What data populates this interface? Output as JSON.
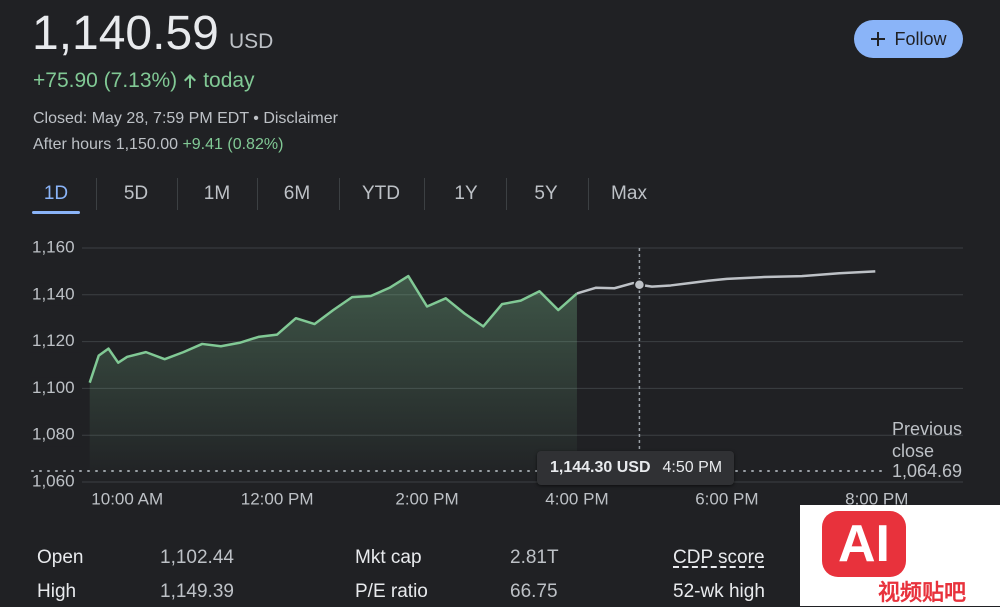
{
  "quote": {
    "price": "1,140.59",
    "currency": "USD",
    "change": "+75.90 (7.13%)",
    "change_suffix": "today",
    "closed": "Closed: May 28, 7:59 PM EDT",
    "separator": "•",
    "disclaimer": "Disclaimer",
    "after_hours": "After hours 1,150.00",
    "after_hours_change": "+9.41 (0.82%)"
  },
  "follow": "Follow",
  "ranges": [
    "1D",
    "5D",
    "1M",
    "6M",
    "YTD",
    "1Y",
    "5Y",
    "Max"
  ],
  "chart_data": {
    "type": "line",
    "series": [
      {
        "color": "#81c995",
        "x": [
          9.5,
          9.62,
          9.75,
          9.88,
          10,
          10.25,
          10.5,
          10.75,
          11,
          11.25,
          11.5,
          11.75,
          12,
          12.25,
          12.5,
          12.75,
          13,
          13.25,
          13.5,
          13.75,
          14,
          14.25,
          14.5,
          14.75,
          15,
          15.25,
          15.5,
          15.75,
          16
        ],
        "values": [
          1102.44,
          1114,
          1117,
          1111,
          1113.5,
          1115.5,
          1112.5,
          1115.5,
          1119,
          1118,
          1119.5,
          1122,
          1123,
          1130,
          1127.5,
          1133.5,
          1139,
          1139.5,
          1143,
          1148,
          1135,
          1138.5,
          1132,
          1126.5,
          1136,
          1137.5,
          1141.5,
          1133.5,
          1140.59
        ]
      },
      {
        "color": "#bdc1c6",
        "x": [
          16,
          16.25,
          16.5,
          16.75,
          16.8333,
          17,
          17.25,
          17.5,
          17.75,
          18,
          18.5,
          19,
          19.5,
          19.98
        ],
        "values": [
          1140.59,
          1143,
          1142.8,
          1145,
          1144.3,
          1143.5,
          1144,
          1145,
          1146,
          1146.8,
          1147.6,
          1148,
          1149.2,
          1150
        ]
      }
    ],
    "xlim": [
      8.73,
      21.15
    ],
    "xticks": [
      {
        "value": 10,
        "label": "10:00 AM"
      },
      {
        "value": 12,
        "label": "12:00 PM"
      },
      {
        "value": 14,
        "label": "2:00 PM"
      },
      {
        "value": 16,
        "label": "4:00 PM"
      },
      {
        "value": 18,
        "label": "6:00 PM"
      },
      {
        "value": 20,
        "label": "8:00 PM"
      }
    ],
    "ylim": [
      1060,
      1160
    ],
    "yticks": [
      {
        "value": 1060,
        "label": "1,060"
      },
      {
        "value": 1080,
        "label": "1,080"
      },
      {
        "value": 1100,
        "label": "1,100"
      },
      {
        "value": 1120,
        "label": "1,120"
      },
      {
        "value": 1140,
        "label": "1,140"
      },
      {
        "value": 1160,
        "label": "1,160"
      }
    ],
    "grid": true,
    "previous_close": {
      "text": "Previous close",
      "value": 1064.69,
      "label": "1,064.69"
    },
    "tooltip": {
      "x": 16.8333,
      "value": 1144.3,
      "value_label": "1,144.30 USD",
      "time_label": "4:50 PM"
    }
  },
  "stats": [
    [
      "Open",
      "1,102.44",
      "Mkt cap",
      "2.81T",
      "CDP score"
    ],
    [
      "High",
      "1,149.39",
      "P/E ratio",
      "66.75",
      "52-wk high"
    ]
  ],
  "watermark": {
    "logo": "AI",
    "text": "视频贴吧"
  }
}
